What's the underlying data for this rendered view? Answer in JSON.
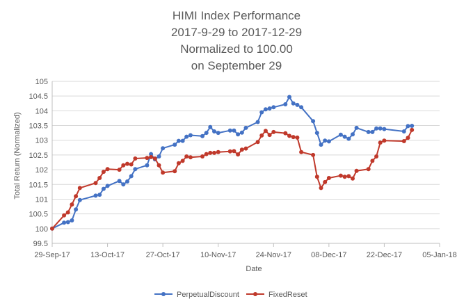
{
  "chart_data": {
    "type": "line",
    "title": [
      "HIMI Index Performance",
      "2017-9-29 to 2017-12-29",
      "Normalized to 100.00",
      "on September 29"
    ],
    "xlabel": "Date",
    "ylabel": "Total Return (Normalized)",
    "xlim": [
      "2017-09-29",
      "2018-01-05"
    ],
    "ylim": [
      99.5,
      105
    ],
    "x_ticks": [
      "29-Sep-17",
      "13-Oct-17",
      "27-Oct-17",
      "10-Nov-17",
      "24-Nov-17",
      "08-Dec-17",
      "22-Dec-17",
      "05-Jan-18"
    ],
    "y_ticks": [
      "99.5",
      "100",
      "100.5",
      "101",
      "101.5",
      "102",
      "102.5",
      "103",
      "103.5",
      "104",
      "104.5",
      "105"
    ],
    "grid": "horizontal",
    "legend_position": "bottom",
    "colors": {
      "PerpetualDiscount": "#4472c4",
      "FixedReset": "#c0392b",
      "grid": "#d9d9d9",
      "axis": "#bfbfbf"
    },
    "series": [
      {
        "name": "PerpetualDiscount",
        "points": [
          [
            "2017-09-29",
            100.0
          ],
          [
            "2017-10-02",
            100.2
          ],
          [
            "2017-10-03",
            100.22
          ],
          [
            "2017-10-04",
            100.28
          ],
          [
            "2017-10-05",
            100.65
          ],
          [
            "2017-10-06",
            100.97
          ],
          [
            "2017-10-10",
            101.12
          ],
          [
            "2017-10-11",
            101.15
          ],
          [
            "2017-10-12",
            101.35
          ],
          [
            "2017-10-13",
            101.45
          ],
          [
            "2017-10-16",
            101.62
          ],
          [
            "2017-10-17",
            101.5
          ],
          [
            "2017-10-18",
            101.6
          ],
          [
            "2017-10-19",
            101.78
          ],
          [
            "2017-10-20",
            102.02
          ],
          [
            "2017-10-23",
            102.15
          ],
          [
            "2017-10-24",
            102.53
          ],
          [
            "2017-10-25",
            102.35
          ],
          [
            "2017-10-26",
            102.45
          ],
          [
            "2017-10-27",
            102.73
          ],
          [
            "2017-10-30",
            102.85
          ],
          [
            "2017-10-31",
            102.98
          ],
          [
            "2017-11-01",
            102.98
          ],
          [
            "2017-11-02",
            103.12
          ],
          [
            "2017-11-03",
            103.17
          ],
          [
            "2017-11-06",
            103.14
          ],
          [
            "2017-11-07",
            103.25
          ],
          [
            "2017-11-08",
            103.45
          ],
          [
            "2017-11-09",
            103.3
          ],
          [
            "2017-11-10",
            103.25
          ],
          [
            "2017-11-13",
            103.33
          ],
          [
            "2017-11-14",
            103.33
          ],
          [
            "2017-11-15",
            103.2
          ],
          [
            "2017-11-16",
            103.26
          ],
          [
            "2017-11-17",
            103.42
          ],
          [
            "2017-11-20",
            103.62
          ],
          [
            "2017-11-21",
            103.95
          ],
          [
            "2017-11-22",
            104.05
          ],
          [
            "2017-11-23",
            104.08
          ],
          [
            "2017-11-24",
            104.12
          ],
          [
            "2017-11-27",
            104.22
          ],
          [
            "2017-11-28",
            104.47
          ],
          [
            "2017-11-29",
            104.25
          ],
          [
            "2017-11-30",
            104.2
          ],
          [
            "2017-12-01",
            104.12
          ],
          [
            "2017-12-04",
            103.65
          ],
          [
            "2017-12-05",
            103.25
          ],
          [
            "2017-12-06",
            102.85
          ],
          [
            "2017-12-07",
            102.99
          ],
          [
            "2017-12-08",
            102.96
          ],
          [
            "2017-12-11",
            103.19
          ],
          [
            "2017-12-12",
            103.12
          ],
          [
            "2017-12-13",
            103.05
          ],
          [
            "2017-12-14",
            103.2
          ],
          [
            "2017-12-15",
            103.42
          ],
          [
            "2017-12-18",
            103.28
          ],
          [
            "2017-12-19",
            103.28
          ],
          [
            "2017-12-20",
            103.4
          ],
          [
            "2017-12-21",
            103.4
          ],
          [
            "2017-12-22",
            103.38
          ],
          [
            "2017-12-27",
            103.3
          ],
          [
            "2017-12-28",
            103.48
          ],
          [
            "2017-12-29",
            103.49
          ]
        ]
      },
      {
        "name": "FixedReset",
        "points": [
          [
            "2017-09-29",
            100.0
          ],
          [
            "2017-10-02",
            100.45
          ],
          [
            "2017-10-03",
            100.55
          ],
          [
            "2017-10-04",
            100.82
          ],
          [
            "2017-10-05",
            101.1
          ],
          [
            "2017-10-06",
            101.38
          ],
          [
            "2017-10-10",
            101.55
          ],
          [
            "2017-10-11",
            101.72
          ],
          [
            "2017-10-12",
            101.93
          ],
          [
            "2017-10-13",
            102.02
          ],
          [
            "2017-10-16",
            102.0
          ],
          [
            "2017-10-17",
            102.15
          ],
          [
            "2017-10-18",
            102.2
          ],
          [
            "2017-10-19",
            102.18
          ],
          [
            "2017-10-20",
            102.38
          ],
          [
            "2017-10-23",
            102.4
          ],
          [
            "2017-10-24",
            102.43
          ],
          [
            "2017-10-25",
            102.38
          ],
          [
            "2017-10-26",
            102.15
          ],
          [
            "2017-10-27",
            101.9
          ],
          [
            "2017-10-30",
            101.95
          ],
          [
            "2017-10-31",
            102.22
          ],
          [
            "2017-11-01",
            102.3
          ],
          [
            "2017-11-02",
            102.45
          ],
          [
            "2017-11-03",
            102.42
          ],
          [
            "2017-11-06",
            102.45
          ],
          [
            "2017-11-07",
            102.53
          ],
          [
            "2017-11-08",
            102.57
          ],
          [
            "2017-11-09",
            102.57
          ],
          [
            "2017-11-10",
            102.6
          ],
          [
            "2017-11-13",
            102.62
          ],
          [
            "2017-11-14",
            102.63
          ],
          [
            "2017-11-15",
            102.52
          ],
          [
            "2017-11-16",
            102.68
          ],
          [
            "2017-11-17",
            102.72
          ],
          [
            "2017-11-20",
            102.94
          ],
          [
            "2017-11-21",
            103.16
          ],
          [
            "2017-11-22",
            103.32
          ],
          [
            "2017-11-23",
            103.18
          ],
          [
            "2017-11-24",
            103.28
          ],
          [
            "2017-11-27",
            103.24
          ],
          [
            "2017-11-28",
            103.15
          ],
          [
            "2017-11-29",
            103.11
          ],
          [
            "2017-11-30",
            103.09
          ],
          [
            "2017-12-01",
            102.6
          ],
          [
            "2017-12-04",
            102.5
          ],
          [
            "2017-12-05",
            101.76
          ],
          [
            "2017-12-06",
            101.38
          ],
          [
            "2017-12-07",
            101.58
          ],
          [
            "2017-12-08",
            101.72
          ],
          [
            "2017-12-11",
            101.8
          ],
          [
            "2017-12-12",
            101.76
          ],
          [
            "2017-12-13",
            101.78
          ],
          [
            "2017-12-14",
            101.7
          ],
          [
            "2017-12-15",
            101.96
          ],
          [
            "2017-12-18",
            102.02
          ],
          [
            "2017-12-19",
            102.3
          ],
          [
            "2017-12-20",
            102.45
          ],
          [
            "2017-12-21",
            102.92
          ],
          [
            "2017-12-22",
            102.99
          ],
          [
            "2017-12-27",
            102.97
          ],
          [
            "2017-12-28",
            103.08
          ],
          [
            "2017-12-29",
            103.35
          ]
        ]
      }
    ]
  }
}
